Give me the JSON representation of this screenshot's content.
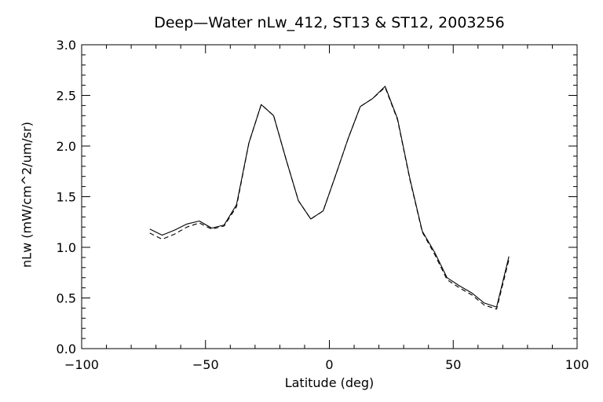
{
  "chart_data": {
    "type": "line",
    "title": "Deep—Water nLw_412, ST13 & ST12, 2003256",
    "xlabel": "Latitude (deg)",
    "ylabel": "nLw (mW/cm^2/um/sr)",
    "xlim": [
      -100,
      100
    ],
    "ylim": [
      0.0,
      3.0
    ],
    "xticks": [
      -100,
      -50,
      0,
      50,
      100
    ],
    "xtick_labels": [
      "−100",
      "−50",
      "0",
      "50",
      "100"
    ],
    "yticks": [
      0.0,
      0.5,
      1.0,
      1.5,
      2.0,
      2.5,
      3.0
    ],
    "ytick_labels": [
      "0.0",
      "0.5",
      "1.0",
      "1.5",
      "2.0",
      "2.5",
      "3.0"
    ],
    "grid": false,
    "series": [
      {
        "style": "solid",
        "x": [
          -72.5,
          -67.5,
          -62.5,
          -57.5,
          -52.5,
          -47.5,
          -42.5,
          -37.5,
          -32.5,
          -27.5,
          -22.5,
          -17.5,
          -12.5,
          -7.5,
          -2.5,
          2.5,
          7.5,
          12.5,
          17.5,
          22.5,
          27.5,
          32.5,
          37.5,
          42.5,
          47.5,
          52.5,
          57.5,
          62.5,
          67.5,
          72.5
        ],
        "y": [
          1.18,
          1.12,
          1.17,
          1.23,
          1.26,
          1.19,
          1.22,
          1.42,
          2.03,
          2.41,
          2.3,
          1.87,
          1.46,
          1.28,
          1.36,
          1.71,
          2.07,
          2.39,
          2.47,
          2.59,
          2.27,
          1.68,
          1.16,
          0.95,
          0.7,
          0.62,
          0.55,
          0.45,
          0.41,
          0.91
        ]
      },
      {
        "style": "dashed",
        "x": [
          -72.5,
          -67.5,
          -62.5,
          -57.5,
          -52.5,
          -47.5,
          -42.5,
          -37.5,
          -32.5,
          -27.5,
          -22.5,
          -17.5,
          -12.5,
          -7.5,
          -2.5,
          2.5,
          7.5,
          12.5,
          17.5,
          22.5,
          27.5,
          32.5,
          37.5,
          42.5,
          47.5,
          52.5,
          57.5,
          62.5,
          67.5,
          72.5
        ],
        "y": [
          1.14,
          1.08,
          1.13,
          1.2,
          1.24,
          1.18,
          1.21,
          1.4,
          2.03,
          2.41,
          2.3,
          1.87,
          1.46,
          1.28,
          1.36,
          1.71,
          2.07,
          2.39,
          2.47,
          2.58,
          2.26,
          1.67,
          1.15,
          0.93,
          0.68,
          0.6,
          0.53,
          0.43,
          0.39,
          0.88
        ]
      }
    ]
  }
}
